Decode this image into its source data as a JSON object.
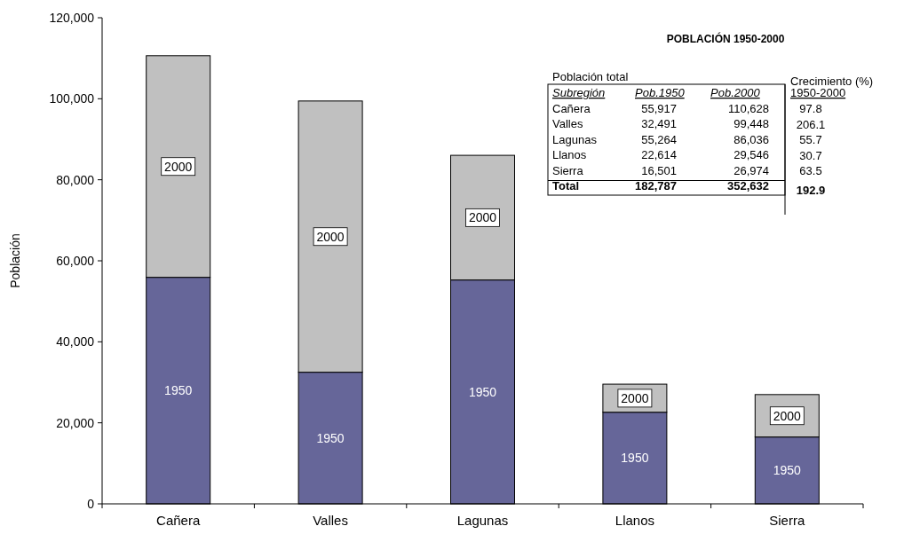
{
  "chart_data": {
    "type": "bar",
    "stacked": true,
    "title": "POBLACIÓN 1950-2000",
    "ylabel": "Población",
    "categories": [
      "Cañera",
      "Valles",
      "Lagunas",
      "Llanos",
      "Sierra"
    ],
    "series": [
      {
        "name": "1950",
        "color": "#666699",
        "values": [
          55917,
          32491,
          55264,
          22614,
          16501
        ]
      },
      {
        "name": "2000",
        "color": "#c0c0c0",
        "values": [
          54711,
          66957,
          30772,
          6932,
          10473
        ]
      }
    ],
    "ylim": [
      0,
      120000
    ],
    "yticks": [
      {
        "value": 0,
        "label": "0"
      },
      {
        "value": 20000,
        "label": "20,000"
      },
      {
        "value": 40000,
        "label": "40,000"
      },
      {
        "value": 60000,
        "label": "60,000"
      },
      {
        "value": 80000,
        "label": "80,000"
      },
      {
        "value": 100000,
        "label": "100,000"
      },
      {
        "value": 120000,
        "label": "120,000"
      }
    ],
    "grid": false,
    "annotations": [
      "Población total",
      "Crecimiento (%)",
      "Subregión",
      "Pob.1950",
      "Pob.2000",
      "Cañera",
      "55,917",
      "110,628",
      "Valles",
      "32,491",
      "99,448",
      "Lagunas",
      "55,264",
      "86,036",
      "Llanos",
      "22,614",
      "29,546",
      "Sierra",
      "16,501",
      "26,974",
      "Total",
      "182,787",
      "352,632",
      "1950-2000",
      "97.8",
      "206.1",
      "55.7",
      "30.7",
      "63.5",
      "192.9"
    ]
  }
}
